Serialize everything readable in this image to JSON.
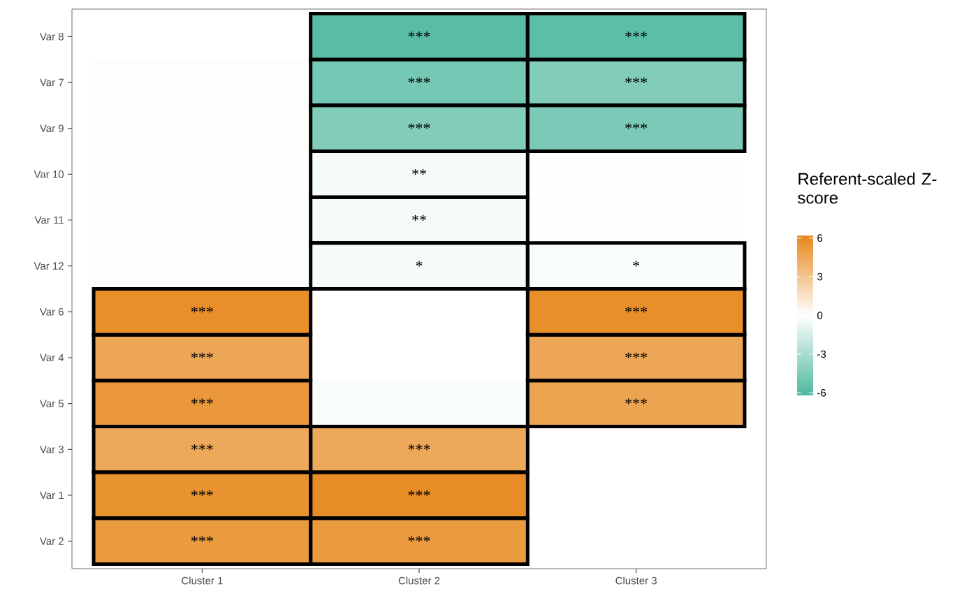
{
  "chart_data": {
    "type": "heatmap",
    "clabel": "Referent-scaled Z-score",
    "categories": [
      "Cluster 1",
      "Cluster 2",
      "Cluster 3"
    ],
    "y_categories": [
      "Var 8",
      "Var 7",
      "Var 9",
      "Var 10",
      "Var 11",
      "Var 12",
      "Var 6",
      "Var 4",
      "Var 5",
      "Var 3",
      "Var 1",
      "Var 2"
    ],
    "cells": [
      [
        0,
        -5.8,
        -5.7
      ],
      [
        -0.1,
        -4.8,
        -4.4
      ],
      [
        0.1,
        -4.4,
        -4.6
      ],
      [
        -0.05,
        -0.3,
        -0.05
      ],
      [
        -0.1,
        -0.4,
        -0.1
      ],
      [
        -0.1,
        -0.3,
        -0.2
      ],
      [
        5.8,
        0,
        5.8
      ],
      [
        4.6,
        0,
        4.6
      ],
      [
        5.3,
        -0.2,
        4.7
      ],
      [
        4.5,
        4.5,
        0
      ],
      [
        5.6,
        5.9,
        0
      ],
      [
        5.2,
        5.2,
        0
      ]
    ],
    "cell_labels": [
      [
        null,
        "***",
        "***"
      ],
      [
        null,
        "***",
        "***"
      ],
      [
        null,
        "***",
        "***"
      ],
      [
        null,
        "**",
        null
      ],
      [
        null,
        "**",
        null
      ],
      [
        null,
        "*",
        "*"
      ],
      [
        "***",
        null,
        "***"
      ],
      [
        "***",
        null,
        "***"
      ],
      [
        "***",
        null,
        "***"
      ],
      [
        "***",
        "***",
        null
      ],
      [
        "***",
        "***",
        null
      ],
      [
        "***",
        "***",
        null
      ]
    ],
    "clim": [
      -6.2,
      6.2
    ],
    "cticks": [
      -6,
      -3,
      0,
      3,
      6
    ],
    "colors": [
      "#4db89e",
      "#ffffff",
      "#e6871a"
    ]
  }
}
